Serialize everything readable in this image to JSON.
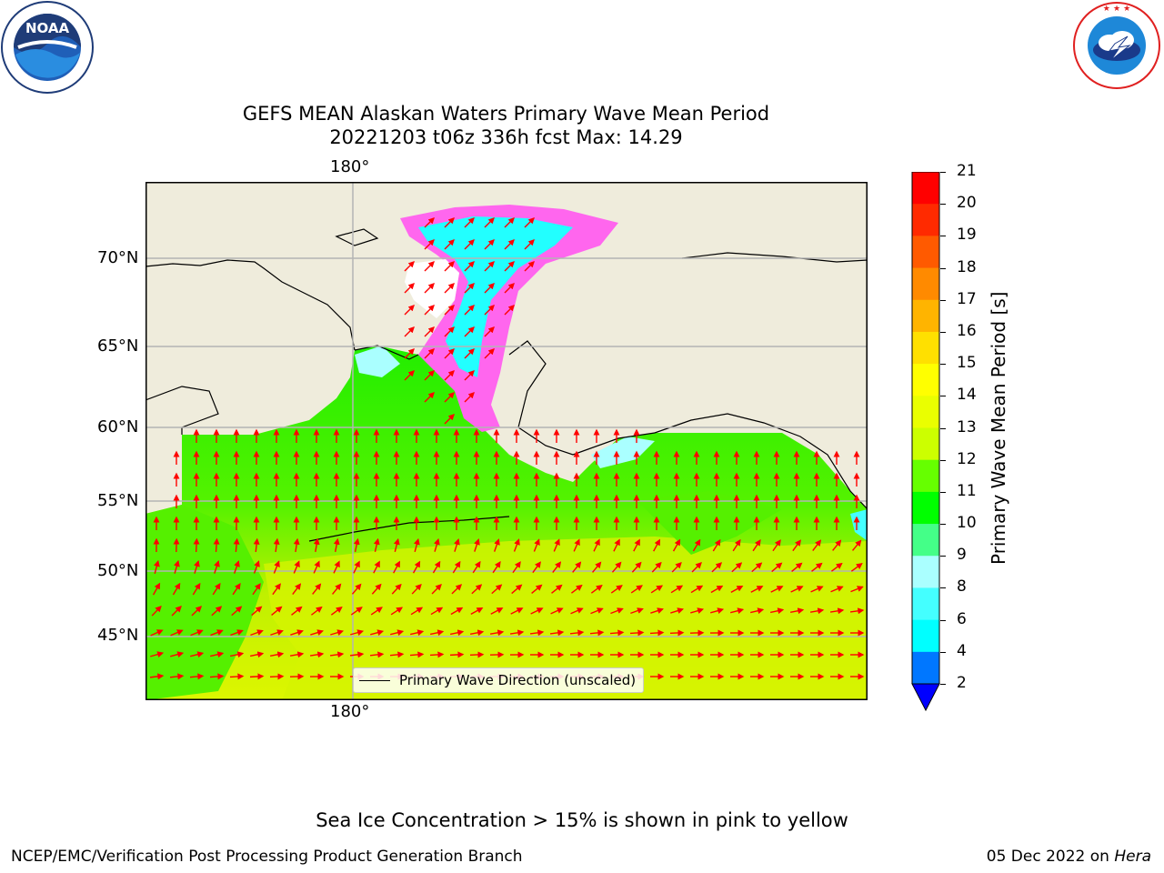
{
  "logos": {
    "noaa": {
      "text": "NOAA",
      "ring_text": "NATIONAL OCEANIC AND ATMOSPHERIC ADMINISTRATION · U.S. DEPARTMENT OF COMMERCE"
    },
    "nws": {
      "ring_text": "NATIONAL WEATHER SERVICE"
    }
  },
  "title": {
    "line1": "GEFS MEAN Alaskan Waters Primary Wave Mean Period",
    "line2": "20221203 t06z 336h fcst   Max: 14.29"
  },
  "map": {
    "top_lon_label": "180°",
    "bottom_lon_label": "180°",
    "lat_labels": [
      "70°N",
      "65°N",
      "60°N",
      "55°N",
      "50°N",
      "45°N"
    ],
    "legend_label": "Primary Wave Direction (unscaled)",
    "colors": {
      "land": "#efecdc",
      "open_ice": "#ffffff",
      "arrow": "#ff0000",
      "grid": "#b4b4b4"
    }
  },
  "colorbar": {
    "title": "Primary Wave Mean Period [s]",
    "ticks": [
      "21",
      "20",
      "19",
      "18",
      "17",
      "16",
      "15",
      "14",
      "13",
      "12",
      "11",
      "10",
      "9",
      "8",
      "6",
      "4",
      "2"
    ],
    "colors": [
      "#ff0000",
      "#ff2a00",
      "#ff5a00",
      "#ff8a00",
      "#ffb400",
      "#ffe000",
      "#ffff00",
      "#eaff00",
      "#ccff00",
      "#66ff00",
      "#00ff00",
      "#44ff88",
      "#aaffff",
      "#44ffff",
      "#00ffff",
      "#0077ff",
      "#0000ff"
    ]
  },
  "footer": {
    "note": "Sea Ice Concentration > 15% is shown in pink to yellow",
    "left": "NCEP/EMC/Verification Post Processing Product Generation Branch",
    "right_date": "05 Dec 2022 on",
    "right_host": "Hera"
  }
}
